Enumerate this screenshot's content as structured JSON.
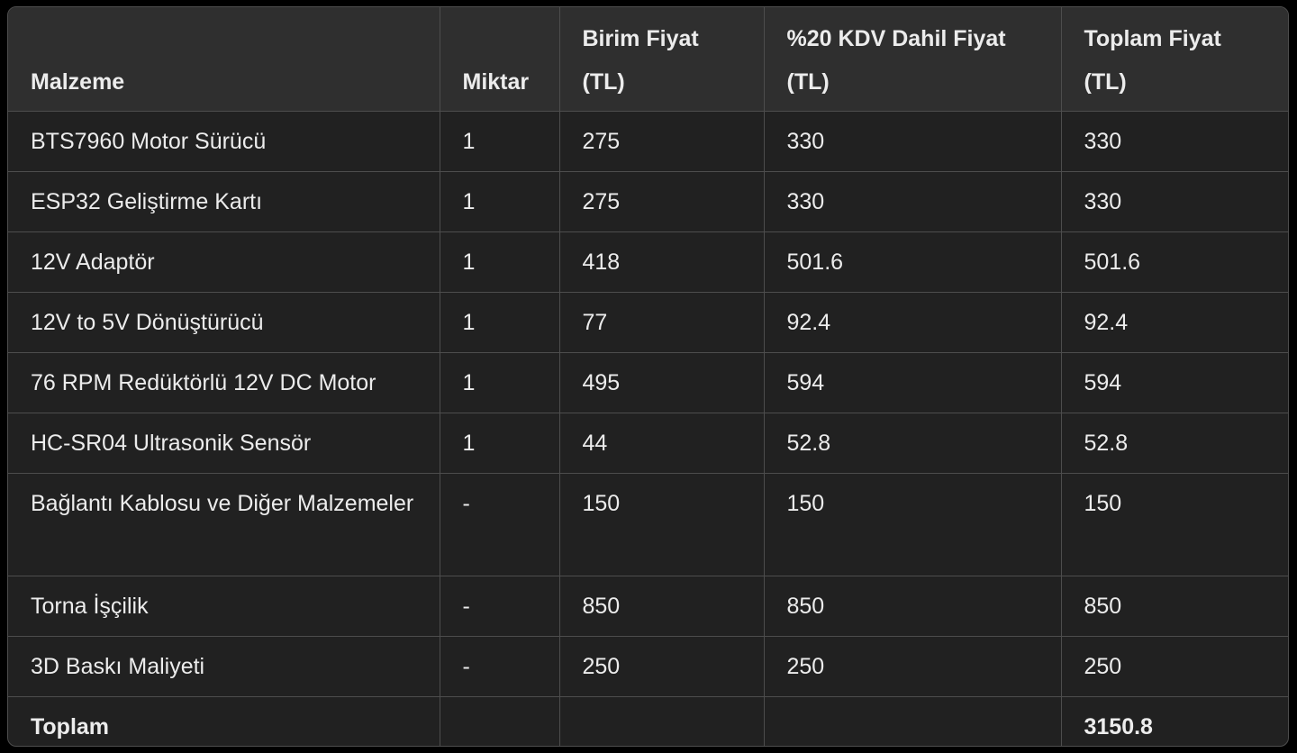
{
  "table": {
    "headers": [
      [
        "Malzeme"
      ],
      [
        "Miktar"
      ],
      [
        "Birim Fiyat",
        "(TL)"
      ],
      [
        "%20 KDV Dahil Fiyat",
        "(TL)"
      ],
      [
        "Toplam Fiyat",
        "(TL)"
      ]
    ],
    "rows": [
      [
        "BTS7960 Motor Sürücü",
        "1",
        "275",
        "330",
        "330"
      ],
      [
        "ESP32 Geliştirme Kartı",
        "1",
        "275",
        "330",
        "330"
      ],
      [
        "12V Adaptör",
        "1",
        "418",
        "501.6",
        "501.6"
      ],
      [
        "12V to 5V Dönüştürücü",
        "1",
        "77",
        "92.4",
        "92.4"
      ],
      [
        "76 RPM Redüktörlü 12V DC Motor",
        "1",
        "495",
        "594",
        "594"
      ],
      [
        "HC-SR04 Ultrasonik Sensör",
        "1",
        "44",
        "52.8",
        "52.8"
      ],
      [
        "Bağlantı Kablosu ve Diğer Malzemeler",
        "-",
        "150",
        "150",
        "150"
      ],
      [
        "Torna İşçilik",
        "-",
        "850",
        "850",
        "850"
      ],
      [
        "3D Baskı Maliyeti",
        "-",
        "250",
        "250",
        "250"
      ],
      [
        "Toplam",
        "",
        "",
        "",
        "3150.8"
      ]
    ]
  }
}
